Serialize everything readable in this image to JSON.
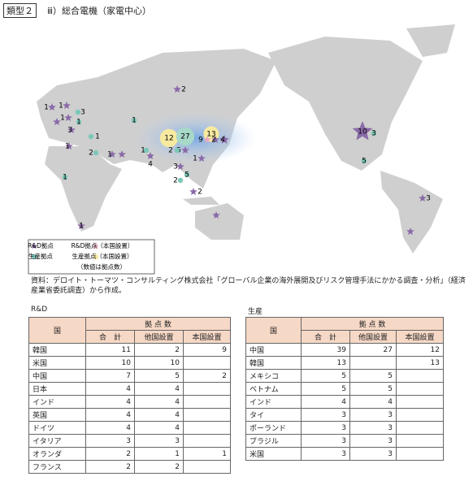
{
  "header": {
    "badge": "類型２",
    "title": "ⅲ）総合電機（家電中心）"
  },
  "map": {
    "markers": [
      {
        "label": 2,
        "shape": "star",
        "color": "#8a6aa8"
      },
      {
        "label": 1,
        "shape": "star",
        "color": "#8a6aa8"
      },
      {
        "label": 1,
        "shape": "star",
        "color": "#8a6aa8"
      },
      {
        "label": 3,
        "shape": "circle",
        "color": "#7cc8b8"
      },
      {
        "label": 1,
        "shape": "star",
        "color": "#8a6aa8"
      },
      {
        "label": 1,
        "shape": "circle",
        "color": "#7cc8b8"
      },
      {
        "label": 3,
        "shape": "star",
        "color": "#8a6aa8"
      },
      {
        "label": 1,
        "shape": "circle",
        "color": "#7cc8b8"
      },
      {
        "label": 1,
        "shape": "circle",
        "color": "#7cc8b8"
      },
      {
        "label": 1,
        "shape": "star",
        "color": "#8a6aa8"
      },
      {
        "label": 2,
        "shape": "circle",
        "color": "#7cc8b8"
      },
      {
        "label": 1,
        "shape": "star",
        "color": "#8a6aa8"
      },
      {
        "label": 1,
        "shape": "circle",
        "color": "#7cc8b8"
      },
      {
        "label": 4,
        "shape": "star",
        "color": "#8a6aa8"
      },
      {
        "label": 12,
        "shape": "circle",
        "color": "#f7eaa0"
      },
      {
        "label": 27,
        "shape": "circle",
        "color": "#a8d8c8"
      },
      {
        "label": 13,
        "shape": "circle",
        "color": "#f7eaa0"
      },
      {
        "label": 9,
        "shape": "star",
        "color": "#e8a8c0"
      },
      {
        "label": 2,
        "shape": "star",
        "color": "#8a6aa8"
      },
      {
        "label": 4,
        "shape": "star",
        "color": "#8a6aa8"
      },
      {
        "label": 5,
        "shape": "star",
        "color": "#8a6aa8"
      },
      {
        "label": 2,
        "shape": "circle",
        "color": "#7cc8b8"
      },
      {
        "label": 3,
        "shape": "star",
        "color": "#8a6aa8"
      },
      {
        "label": 5,
        "shape": "circle",
        "color": "#7cc8b8"
      },
      {
        "label": 2,
        "shape": "circle",
        "color": "#7cc8b8"
      },
      {
        "label": 2,
        "shape": "star",
        "color": "#8a6aa8"
      },
      {
        "label": 1,
        "shape": "star",
        "color": "#8a6aa8"
      },
      {
        "label": 1,
        "shape": "circle",
        "color": "#7cc8b8"
      },
      {
        "label": 1,
        "shape": "star",
        "color": "#8a6aa8"
      },
      {
        "label": 10,
        "shape": "star",
        "color": "#8a6aa8"
      },
      {
        "label": 3,
        "shape": "circle",
        "color": "#7cc8b8"
      },
      {
        "label": 5,
        "shape": "circle",
        "color": "#7cc8b8"
      },
      {
        "label": 3,
        "shape": "star",
        "color": "#8a6aa8"
      }
    ],
    "legend": [
      "R&D拠点",
      "R&D拠点（本国設置）",
      "生産拠点",
      "生産拠点（本国設置）"
    ],
    "legend_note": "（数値は拠点数）"
  },
  "source": "資料：デロイト・トーマツ・コンサルティング株式会社「グローバル企業の海外展開及びリスク管理手法にかかる調査・分析」（経済産業省委託調査）から作成。",
  "tables": [
    {
      "title": "R&D",
      "header": {
        "country": "国",
        "group": "拠 点 数",
        "sub": [
          "合　計",
          "他国設置",
          "本国設置"
        ]
      },
      "rows": [
        [
          "韓国",
          11,
          2,
          9
        ],
        [
          "米国",
          10,
          10,
          null
        ],
        [
          "中国",
          7,
          5,
          2
        ],
        [
          "日本",
          4,
          4,
          null
        ],
        [
          "インド",
          4,
          4,
          null
        ],
        [
          "英国",
          4,
          4,
          null
        ],
        [
          "ドイツ",
          4,
          4,
          null
        ],
        [
          "イタリア",
          3,
          3,
          null
        ],
        [
          "オランダ",
          2,
          1,
          1
        ],
        [
          "フランス",
          2,
          2,
          null
        ]
      ]
    },
    {
      "title": "生産",
      "header": {
        "country": "国",
        "group": "拠 点 数",
        "sub": [
          "合　計",
          "他国設置",
          "本国設置"
        ]
      },
      "rows": [
        [
          "中国",
          39,
          27,
          12
        ],
        [
          "韓国",
          13,
          null,
          13
        ],
        [
          "メキシコ",
          5,
          5,
          null
        ],
        [
          "ベトナム",
          5,
          5,
          null
        ],
        [
          "インド",
          4,
          4,
          null
        ],
        [
          "タイ",
          3,
          3,
          null
        ],
        [
          "ポーランド",
          3,
          3,
          null
        ],
        [
          "ブラジル",
          3,
          3,
          null
        ],
        [
          "米国",
          3,
          3,
          null
        ]
      ]
    }
  ]
}
